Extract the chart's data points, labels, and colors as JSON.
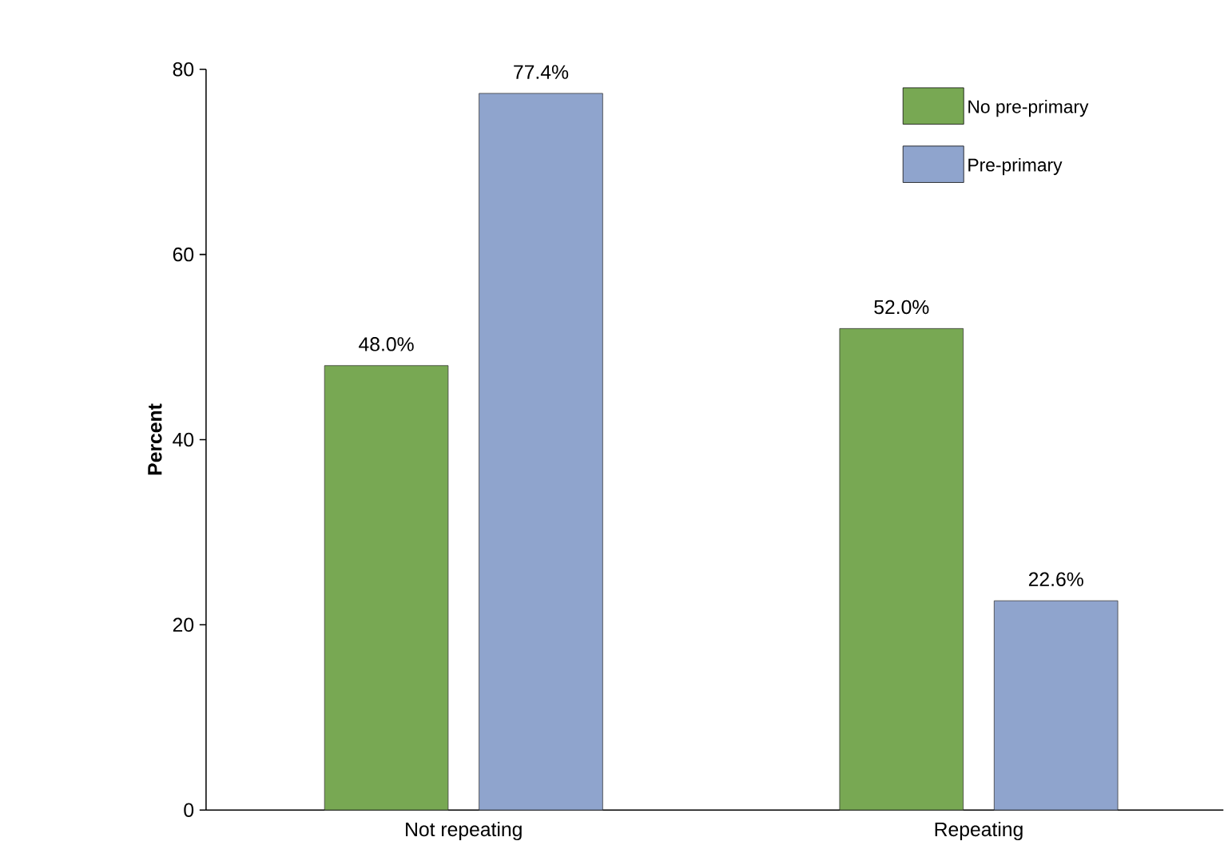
{
  "chart_data": {
    "type": "bar",
    "ylabel": "Percent",
    "categories": [
      "Not repeating",
      "Repeating"
    ],
    "series": [
      {
        "name": "No pre-primary",
        "color": "#78a853",
        "values": [
          48.0,
          52.0
        ],
        "value_labels": [
          "48.0%",
          "52.0%"
        ]
      },
      {
        "name": "Pre-primary",
        "color": "#8fa4cd",
        "values": [
          77.4,
          22.6
        ],
        "value_labels": [
          "77.4%",
          "22.6%"
        ]
      }
    ],
    "ylim": [
      0,
      80
    ],
    "yticks": [
      0,
      20,
      40,
      60,
      80
    ],
    "grid": false,
    "legend": "top right"
  }
}
